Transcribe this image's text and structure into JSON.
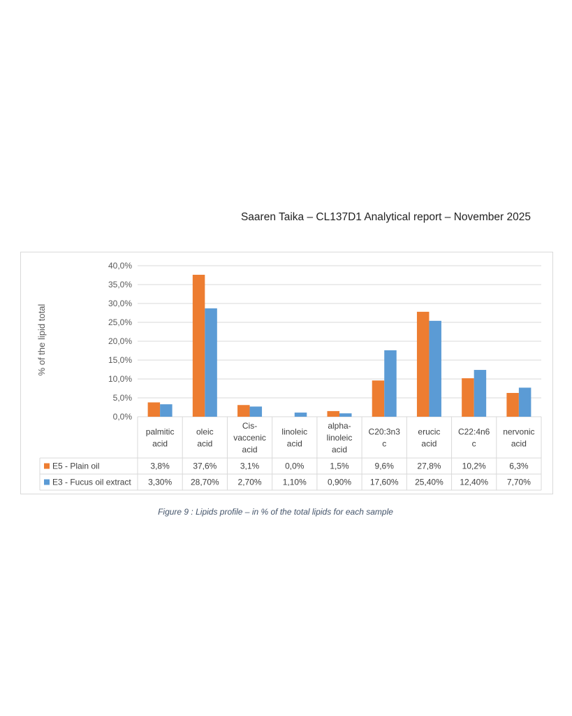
{
  "header": {
    "text": "Saaren Taika – CL137D1 Analytical report – November 2025"
  },
  "caption": {
    "text": "Figure 9 : Lipids profile – in % of the total lipids for each sample"
  },
  "colors": {
    "series_1": "#ed7d31",
    "series_2": "#5b9bd5",
    "grid": "#d9d9d9"
  },
  "chart_data": {
    "type": "bar",
    "title": "",
    "xlabel": "",
    "ylabel": "% of the lipid total",
    "ylim": [
      0,
      40
    ],
    "yticks": [
      "0,0%",
      "5,0%",
      "10,0%",
      "15,0%",
      "20,0%",
      "25,0%",
      "30,0%",
      "35,0%",
      "40,0%"
    ],
    "grid": true,
    "legend": "data-table",
    "categories": [
      [
        "palmitic",
        "acid"
      ],
      [
        "oleic",
        "acid"
      ],
      [
        "Cis-",
        "vaccenic",
        "acid"
      ],
      [
        "linoleic",
        "acid"
      ],
      [
        "alpha-",
        "linoleic",
        "acid"
      ],
      [
        "C20:3n3",
        "c"
      ],
      [
        "erucic",
        "acid"
      ],
      [
        "C22:4n6",
        "c"
      ],
      [
        "nervonic",
        "acid"
      ]
    ],
    "series": [
      {
        "name": "E5 - Plain oil",
        "values": [
          3.8,
          37.6,
          3.1,
          0.0,
          1.5,
          9.6,
          27.8,
          10.2,
          6.3
        ],
        "labels": [
          "3,8%",
          "37,6%",
          "3,1%",
          "0,0%",
          "1,5%",
          "9,6%",
          "27,8%",
          "10,2%",
          "6,3%"
        ]
      },
      {
        "name": "E3 - Fucus oil extract",
        "values": [
          3.3,
          28.7,
          2.7,
          1.1,
          0.9,
          17.6,
          25.4,
          12.4,
          7.7
        ],
        "labels": [
          "3,30%",
          "28,70%",
          "2,70%",
          "1,10%",
          "0,90%",
          "17,60%",
          "25,40%",
          "12,40%",
          "7,70%"
        ]
      }
    ]
  }
}
